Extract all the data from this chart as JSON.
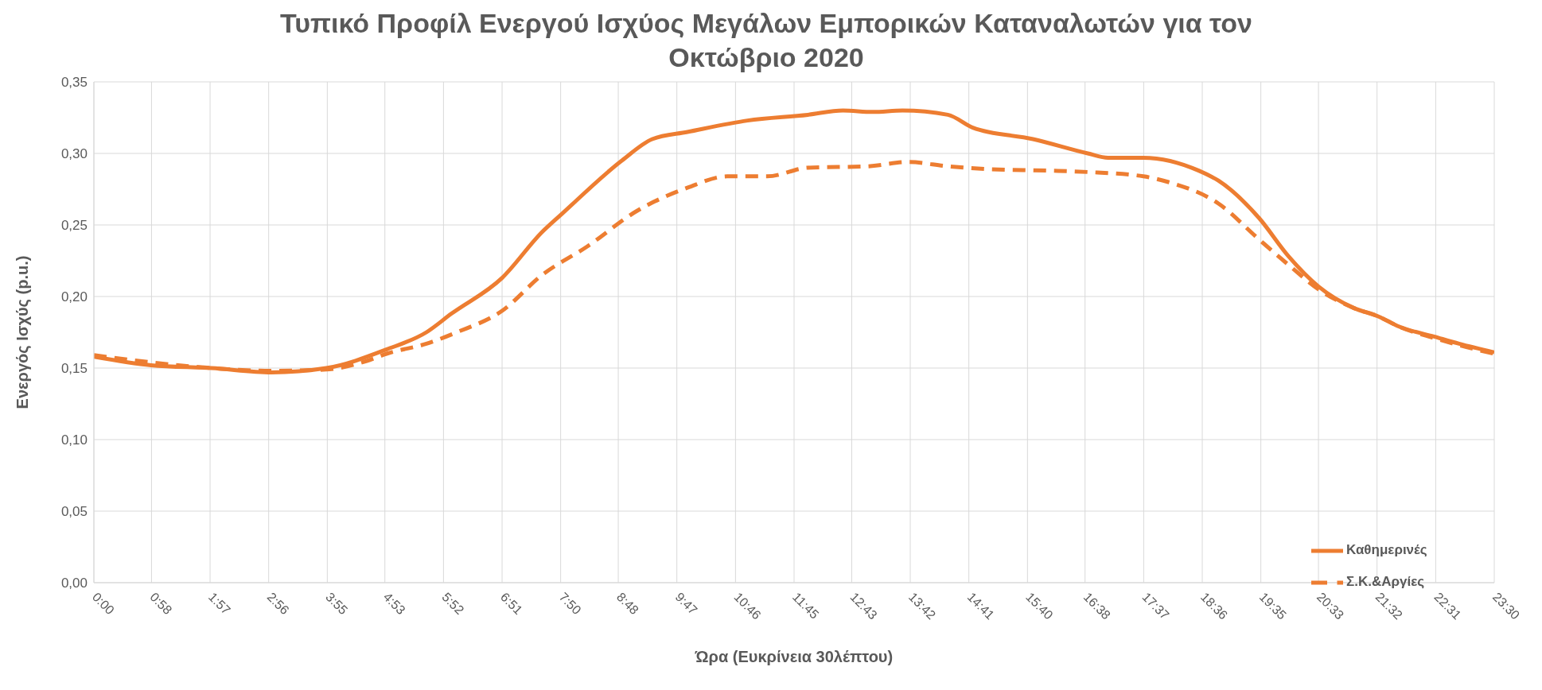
{
  "chart_data": {
    "type": "line",
    "title": "Τυπικό Προφίλ Ενεργού Ισχύος Μεγάλων Εμπορικών Καταναλωτών για τον Οκτώβριο 2020",
    "xlabel": "Ώρα (Ευκρίνεια 30λέπτου)",
    "ylabel": "Ενεργός Ισχύς (p.u.)",
    "xlim": [
      0,
      23.5
    ],
    "xticks": [
      {
        "value": 0,
        "label": "0:00"
      },
      {
        "value": 0.967,
        "label": "0:58"
      },
      {
        "value": 1.95,
        "label": "1:57"
      },
      {
        "value": 2.933,
        "label": "2:56"
      },
      {
        "value": 3.917,
        "label": "3:55"
      },
      {
        "value": 4.883,
        "label": "4:53"
      },
      {
        "value": 5.867,
        "label": "5:52"
      },
      {
        "value": 6.85,
        "label": "6:51"
      },
      {
        "value": 7.833,
        "label": "7:50"
      },
      {
        "value": 8.8,
        "label": "8:48"
      },
      {
        "value": 9.783,
        "label": "9:47"
      },
      {
        "value": 10.767,
        "label": "10:46"
      },
      {
        "value": 11.75,
        "label": "11:45"
      },
      {
        "value": 12.717,
        "label": "12:43"
      },
      {
        "value": 13.7,
        "label": "13:42"
      },
      {
        "value": 14.683,
        "label": "14:41"
      },
      {
        "value": 15.667,
        "label": "15:40"
      },
      {
        "value": 16.633,
        "label": "16:38"
      },
      {
        "value": 17.617,
        "label": "17:37"
      },
      {
        "value": 18.6,
        "label": "18:36"
      },
      {
        "value": 19.583,
        "label": "19:35"
      },
      {
        "value": 20.55,
        "label": "20:33"
      },
      {
        "value": 21.533,
        "label": "21:32"
      },
      {
        "value": 22.517,
        "label": "22:31"
      },
      {
        "value": 23.5,
        "label": "23:30"
      }
    ],
    "ylim": [
      0,
      0.35
    ],
    "yticks": [
      {
        "value": 0,
        "label": "0,00"
      },
      {
        "value": 0.05,
        "label": "0,05"
      },
      {
        "value": 0.1,
        "label": "0,10"
      },
      {
        "value": 0.15,
        "label": "0,15"
      },
      {
        "value": 0.2,
        "label": "0,20"
      },
      {
        "value": 0.25,
        "label": "0,25"
      },
      {
        "value": 0.3,
        "label": "0,30"
      },
      {
        "value": 0.35,
        "label": "0,35"
      }
    ],
    "grid": true,
    "legend": "bottom right",
    "marker": "none",
    "series": [
      {
        "name": "Καθημερινές",
        "color": "#ed7d31",
        "line_style": "solid",
        "x": [
          0,
          0.96,
          1.97,
          2.98,
          3.9,
          4.91,
          5.58,
          6.0,
          6.85,
          7.52,
          7.86,
          8.86,
          9.37,
          9.96,
          10.97,
          11.98,
          12.57,
          13.07,
          13.57,
          14.33,
          14.75,
          15.76,
          16.68,
          17.02,
          17.61,
          18.54,
          18.87,
          19.55,
          20.05,
          20.55,
          21.14,
          21.56,
          21.9,
          22.49,
          22.91,
          23.5
        ],
        "values": [
          0.158,
          0.152,
          0.15,
          0.147,
          0.15,
          0.163,
          0.175,
          0.188,
          0.213,
          0.245,
          0.258,
          0.295,
          0.31,
          0.315,
          0.323,
          0.327,
          0.33,
          0.329,
          0.33,
          0.327,
          0.318,
          0.31,
          0.3,
          0.297,
          0.297,
          0.288,
          0.281,
          0.255,
          0.228,
          0.207,
          0.192,
          0.186,
          0.179,
          0.172,
          0.167,
          0.161
        ]
      },
      {
        "name": "Σ.Κ.&Αργίες",
        "color": "#ed7d31",
        "line_style": "dashed",
        "x": [
          0,
          0.96,
          1.97,
          2.98,
          3.9,
          4.58,
          4.91,
          5.58,
          6.09,
          6.85,
          7.52,
          8.28,
          9.12,
          9.96,
          10.63,
          11.3,
          11.98,
          12.99,
          13.66,
          14.33,
          15.0,
          16.01,
          16.68,
          17.61,
          18.03,
          18.87,
          19.55,
          20.05,
          20.55,
          21.14,
          21.56,
          21.9,
          22.49,
          22.91,
          23.5
        ],
        "values": [
          0.159,
          0.154,
          0.15,
          0.148,
          0.149,
          0.155,
          0.16,
          0.167,
          0.175,
          0.19,
          0.215,
          0.235,
          0.26,
          0.276,
          0.284,
          0.284,
          0.29,
          0.291,
          0.294,
          0.291,
          0.289,
          0.288,
          0.287,
          0.284,
          0.28,
          0.265,
          0.24,
          0.222,
          0.205,
          0.192,
          0.186,
          0.179,
          0.171,
          0.166,
          0.16
        ]
      }
    ]
  }
}
